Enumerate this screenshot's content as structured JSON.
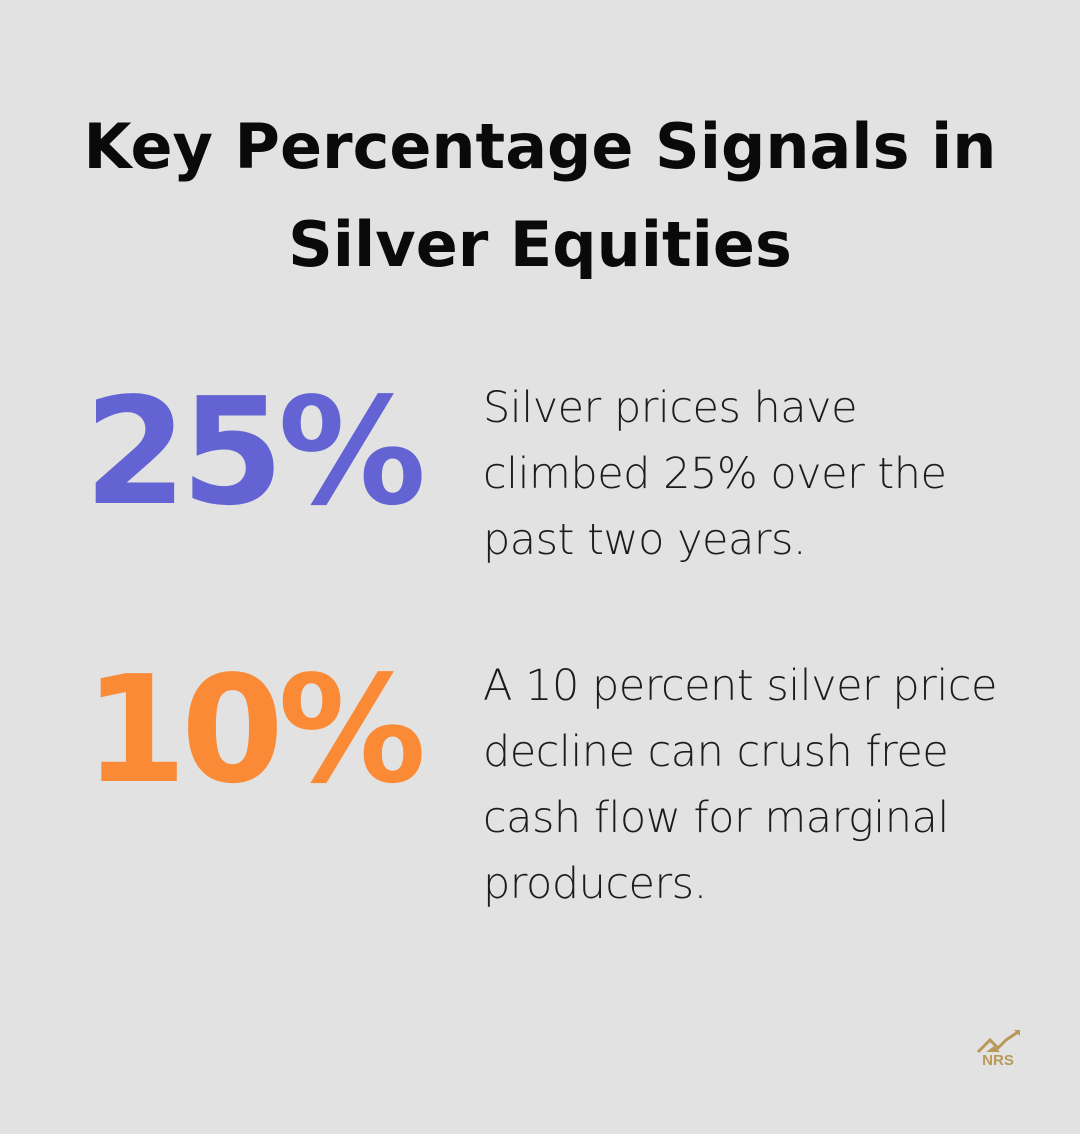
{
  "title": "Key Percentage Signals in Silver Equities",
  "stats": [
    {
      "value": "25%",
      "color": "#6363d4",
      "description": "Silver prices have climbed 25% over the past two years."
    },
    {
      "value": "10%",
      "color": "#fb8a36",
      "description": "A 10 percent silver price decline can crush free cash flow for marginal producers."
    }
  ],
  "logo": {
    "text": "NRS",
    "icon": "mountain-chart-arrow-icon",
    "color": "#b8995a"
  }
}
